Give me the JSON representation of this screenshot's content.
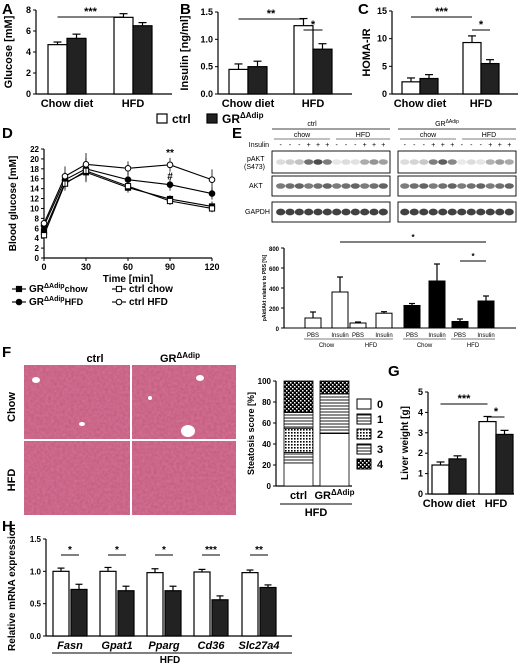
{
  "panels": {
    "A": "A",
    "B": "B",
    "C": "C",
    "D": "D",
    "E": "E",
    "F": "F",
    "G": "G",
    "H": "H"
  },
  "legend_top": {
    "ctrl": "ctrl",
    "gr": "GR",
    "gr_sup": "ΔAdip"
  },
  "chart_data": [
    {
      "panel": "A",
      "type": "bar",
      "ylabel": "Glucose [mM]",
      "ylim": [
        0,
        8
      ],
      "yticks": [
        0,
        2,
        4,
        6,
        8
      ],
      "groups": [
        "Chow diet",
        "HFD"
      ],
      "series": [
        {
          "name": "ctrl",
          "values": [
            4.7,
            7.3
          ],
          "errors": [
            0.25,
            0.35
          ]
        },
        {
          "name": "GRΔAdip",
          "values": [
            5.3,
            6.5
          ],
          "errors": [
            0.4,
            0.3
          ]
        }
      ],
      "significance": [
        {
          "label": "***",
          "between": [
            "ctrl Chow diet",
            "ctrl HFD"
          ]
        }
      ]
    },
    {
      "panel": "B",
      "type": "bar",
      "ylabel": "Insulin [ng/ml]",
      "ylim": [
        0,
        1.5
      ],
      "yticks": [
        0.0,
        0.5,
        1.0,
        1.5
      ],
      "groups": [
        "Chow diet",
        "HFD"
      ],
      "series": [
        {
          "name": "ctrl",
          "values": [
            0.45,
            1.25
          ],
          "errors": [
            0.1,
            0.13
          ]
        },
        {
          "name": "GRΔAdip",
          "values": [
            0.5,
            0.82
          ],
          "errors": [
            0.1,
            0.1
          ]
        }
      ],
      "significance": [
        {
          "label": "**",
          "between": [
            "ctrl Chow diet",
            "ctrl HFD"
          ]
        },
        {
          "label": "*",
          "between": [
            "ctrl HFD",
            "GRΔAdip HFD"
          ]
        }
      ]
    },
    {
      "panel": "C",
      "type": "bar",
      "ylabel": "HOMA-IR",
      "ylim": [
        0,
        15
      ],
      "yticks": [
        0,
        5,
        10,
        15
      ],
      "groups": [
        "Chow diet",
        "HFD"
      ],
      "series": [
        {
          "name": "ctrl",
          "values": [
            2.2,
            9.3
          ],
          "errors": [
            0.7,
            1.2
          ]
        },
        {
          "name": "GRΔAdip",
          "values": [
            2.8,
            5.5
          ],
          "errors": [
            0.7,
            0.7
          ]
        }
      ],
      "significance": [
        {
          "label": "***",
          "between": [
            "ctrl Chow diet",
            "ctrl HFD"
          ]
        },
        {
          "label": "*",
          "between": [
            "ctrl HFD",
            "GRΔAdip HFD"
          ]
        }
      ]
    },
    {
      "panel": "D",
      "type": "line",
      "xlabel": "Time [min]",
      "ylabel": "Blood glucose [mM]",
      "x": [
        0,
        15,
        30,
        60,
        90,
        120
      ],
      "xlim": [
        0,
        120
      ],
      "ylim": [
        0,
        22
      ],
      "yticks": [
        0,
        2,
        4,
        6,
        8,
        10,
        12,
        14,
        16,
        18,
        20,
        22
      ],
      "xticks": [
        0,
        30,
        60,
        90,
        120
      ],
      "series": [
        {
          "name": "GRΔAdip chow",
          "marker": "filled-square",
          "values": [
            5.3,
            15.2,
            17.3,
            14.2,
            11.9,
            10.4
          ]
        },
        {
          "name": "GRΔAdip HFD",
          "marker": "filled-circle",
          "values": [
            6.5,
            15.8,
            18.0,
            15.8,
            14.8,
            13.0
          ]
        },
        {
          "name": "ctrl chow",
          "marker": "open-square",
          "values": [
            4.6,
            15.0,
            17.6,
            14.5,
            11.5,
            10.0
          ]
        },
        {
          "name": "ctrl HFD",
          "marker": "open-circle",
          "values": [
            7.0,
            16.5,
            18.9,
            18.1,
            18.8,
            15.8
          ]
        }
      ],
      "annotations": [
        {
          "x": 90,
          "label": "**"
        },
        {
          "x": 90,
          "label": "#"
        }
      ],
      "legend": [
        {
          "name": "GR",
          "sup": "ΔAdip",
          "suffix": "chow",
          "marker": "filled-square"
        },
        {
          "name": "GR",
          "sup": "ΔAdip",
          "suffix": "HFD",
          "marker": "filled-circle"
        },
        {
          "name": "ctrl chow",
          "marker": "open-square"
        },
        {
          "name": "ctrl HFD",
          "marker": "open-circle"
        }
      ]
    },
    {
      "panel": "E",
      "type": "bar",
      "blot": {
        "group_ctrl": "ctrl",
        "group_gr": "GR",
        "group_gr_sup": "ΔAdip",
        "insulin_label": "Insulin",
        "diet_labels": [
          "chow",
          "HFD",
          "chow",
          "HFD"
        ],
        "insulin_marks": [
          "-",
          "-",
          "-",
          "+",
          "+",
          "+",
          "-",
          "-",
          "-",
          "+",
          "+",
          "+"
        ],
        "rows": [
          "pAKT",
          "(S473)",
          "AKT",
          "GAPDH"
        ]
      },
      "ylabel": "pAkt/Akt relative to PBS [%]",
      "ylim": [
        0,
        800
      ],
      "yticks": [
        0,
        200,
        400,
        600,
        800
      ],
      "categories": [
        "PBS",
        "Insulin",
        "PBS",
        "Insulin",
        "PBS",
        "Insulin",
        "PBS",
        "Insulin"
      ],
      "group_labels": [
        "Chow",
        "HFD",
        "Chow",
        "HFD"
      ],
      "values": [
        100,
        360,
        50,
        148,
        225,
        470,
        65,
        270
      ],
      "errors": [
        60,
        150,
        10,
        15,
        20,
        170,
        25,
        50
      ],
      "fills": [
        "white",
        "white",
        "white",
        "white",
        "black",
        "black",
        "black",
        "black"
      ],
      "significance": [
        {
          "label": "*",
          "between": [
            "Insulin ctrl Chow",
            "Insulin GRΔAdip HFD"
          ]
        },
        {
          "label": "*",
          "between": [
            "PBS GRΔAdip HFD",
            "Insulin GRΔAdip HFD"
          ]
        }
      ]
    },
    {
      "panel": "F",
      "type": "bar",
      "histology": {
        "col_labels": [
          "ctrl",
          "GR"
        ],
        "col_label_sup": "ΔAdip",
        "row_labels": [
          "Chow",
          "HFD"
        ]
      },
      "ylabel": "Steatosis score [%]",
      "ylim": [
        0,
        100
      ],
      "yticks": [
        0,
        20,
        40,
        60,
        80,
        100
      ],
      "categories": [
        "ctrl",
        "GRΔAdip"
      ],
      "category_sup": "ΔAdip",
      "xlabel": "HFD",
      "series": [
        {
          "name": "0",
          "values": [
            22,
            50
          ]
        },
        {
          "name": "1",
          "values": [
            10,
            0
          ]
        },
        {
          "name": "2",
          "values": [
            23,
            0
          ]
        },
        {
          "name": "3",
          "values": [
            15,
            38
          ]
        },
        {
          "name": "4",
          "values": [
            30,
            12
          ]
        }
      ],
      "legend_items": [
        "0",
        "1",
        "2",
        "3",
        "4"
      ]
    },
    {
      "panel": "G",
      "type": "bar",
      "ylabel": "Liver weight [g]",
      "ylim": [
        0,
        5
      ],
      "yticks": [
        0,
        1,
        2,
        3,
        4,
        5
      ],
      "groups": [
        "Chow diet",
        "HFD"
      ],
      "series": [
        {
          "name": "ctrl",
          "values": [
            1.42,
            3.55
          ],
          "errors": [
            0.15,
            0.25
          ]
        },
        {
          "name": "GRΔAdip",
          "values": [
            1.72,
            2.92
          ],
          "errors": [
            0.15,
            0.2
          ]
        }
      ],
      "significance": [
        {
          "label": "***",
          "between": [
            "ctrl Chow diet",
            "ctrl HFD"
          ]
        },
        {
          "label": "*",
          "between": [
            "ctrl HFD",
            "GRΔAdip HFD"
          ]
        }
      ]
    },
    {
      "panel": "H",
      "type": "bar",
      "ylabel": "Relative mRNA expression",
      "ylim": [
        0,
        1.5
      ],
      "yticks": [
        0.0,
        0.5,
        1.0,
        1.5
      ],
      "categories": [
        "Fasn",
        "Gpat1",
        "Pparg",
        "Cd36",
        "Slc27a4"
      ],
      "xlabel": "HFD",
      "series": [
        {
          "name": "ctrl",
          "values": [
            1.0,
            1.0,
            0.98,
            0.99,
            0.98
          ],
          "errors": [
            0.05,
            0.06,
            0.06,
            0.04,
            0.04
          ]
        },
        {
          "name": "GRΔAdip",
          "values": [
            0.72,
            0.7,
            0.7,
            0.56,
            0.75
          ],
          "errors": [
            0.08,
            0.07,
            0.07,
            0.06,
            0.04
          ]
        }
      ],
      "significance": [
        "*",
        "*",
        "*",
        "***",
        "**"
      ]
    }
  ]
}
